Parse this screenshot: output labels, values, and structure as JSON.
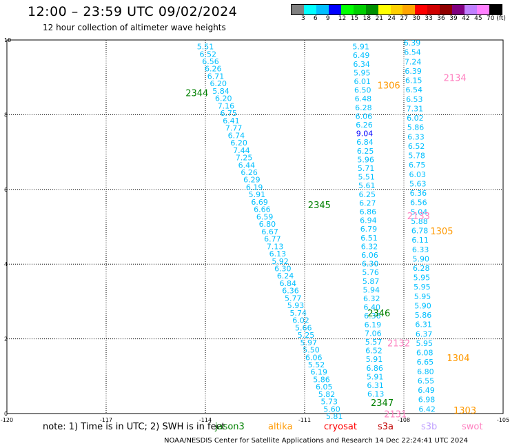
{
  "header": {
    "title": "12:00 – 23:59 UTC 09/02/2024",
    "subtitle": "12 hour collection of altimeter wave heights"
  },
  "colorbar": {
    "colors": [
      "#808080",
      "#00ffff",
      "#00bfff",
      "#0000ff",
      "#00ff00",
      "#00d000",
      "#009000",
      "#ffff00",
      "#ffd000",
      "#ffa500",
      "#ff0000",
      "#d00000",
      "#900000",
      "#800080",
      "#c080ff",
      "#ff80ff",
      "#000000"
    ],
    "labels": [
      "3",
      "6",
      "9",
      "12",
      "15",
      "18",
      "21",
      "24",
      "27",
      "30",
      "33",
      "36",
      "39",
      "42",
      "45",
      "70 (ft)"
    ]
  },
  "axes": {
    "y_ticks": [
      "10",
      "8",
      "6",
      "4",
      "2",
      "0"
    ],
    "x_ticks": [
      "-120",
      "-117",
      "-114",
      "-111",
      "-108",
      "-105"
    ]
  },
  "passes": [
    {
      "label": "2344",
      "color": "#008000",
      "lon": -114.6,
      "lat": 8.5
    },
    {
      "label": "2345",
      "color": "#008000",
      "lon": -110.9,
      "lat": 5.5
    },
    {
      "label": "2346",
      "color": "#008000",
      "lon": -109.1,
      "lat": 2.6
    },
    {
      "label": "2347",
      "color": "#008000",
      "lon": -109.0,
      "lat": 0.2
    },
    {
      "label": "1306",
      "color": "#ff9900",
      "lon": -108.8,
      "lat": 8.7
    },
    {
      "label": "2134",
      "color": "#ff80c0",
      "lon": -106.8,
      "lat": 8.9
    },
    {
      "label": "2133",
      "color": "#ff80c0",
      "lon": -107.9,
      "lat": 5.2
    },
    {
      "label": "1305",
      "color": "#ff9900",
      "lon": -107.2,
      "lat": 4.8
    },
    {
      "label": "2132",
      "color": "#ff80c0",
      "lon": -108.5,
      "lat": 1.8
    },
    {
      "label": "1304",
      "color": "#ff9900",
      "lon": -106.7,
      "lat": 1.4
    },
    {
      "label": "2131",
      "color": "#ff80c0",
      "lon": -108.6,
      "lat": -0.1
    },
    {
      "label": "1303",
      "color": "#ff9900",
      "lon": -106.5,
      "lat": 0.0
    }
  ],
  "tracks": [
    {
      "color": "#00bfff",
      "lon_start": -114.0,
      "lat_start": 9.75,
      "lon_end": -110.1,
      "lat_end": -0.15,
      "values": [
        "5.51",
        "6.52",
        "6.56",
        "6.26",
        "6.71",
        "6.20",
        "5.84",
        "6.20",
        "7.16",
        "6.75",
        "6.41",
        "7.77",
        "6.74",
        "6.20",
        "7.44",
        "7.25",
        "6.44",
        "6.26",
        "6.29",
        "6.19",
        "5.91",
        "6.69",
        "6.66",
        "6.59",
        "6.80",
        "6.67",
        "6.77",
        "7.13",
        "6.13",
        "5.92",
        "6.30",
        "6.24",
        "6.84",
        "6.36",
        "5.77",
        "5.93",
        "5.74",
        "6.02",
        "5.66",
        "5.25",
        "5.97",
        "5.50",
        "6.06",
        "5.52",
        "6.19",
        "5.86",
        "6.05",
        "5.82",
        "5.73",
        "5.60",
        "5.81"
      ]
    },
    {
      "color": "#00bfff",
      "lon_start": -109.3,
      "lat_start": 9.75,
      "lon_end": -108.85,
      "lat_end": 0.45,
      "values": [
        "5.91",
        "6.49",
        "6.34",
        "5.95",
        "6.01",
        "6.50",
        "6.48",
        "6.28",
        "6.06",
        "6.26",
        "9.04",
        "6.84",
        "6.25",
        "5.96",
        "5.71",
        "5.51",
        "5.61",
        "6.25",
        "6.27",
        "6.86",
        "6.94",
        "6.79",
        "6.51",
        "6.32",
        "6.06",
        "6.30",
        "5.76",
        "5.87",
        "5.94",
        "6.32",
        "6.40",
        "6.36",
        "6.19",
        "7.06",
        "5.57",
        "6.52",
        "5.91",
        "6.86",
        "5.91",
        "6.31",
        "6.13"
      ]
    },
    {
      "color": "#00bfff",
      "lon_start": -107.75,
      "lat_start": 9.85,
      "lon_end": -107.3,
      "lat_end": 0.05,
      "values": [
        "6.39",
        "6.54",
        "7.24",
        "6.39",
        "6.15",
        "6.54",
        "6.53",
        "7.31",
        "6.02",
        "5.86",
        "6.33",
        "6.52",
        "5.78",
        "6.75",
        "6.03",
        "5.63",
        "6.36",
        "6.56",
        "5.04",
        "5.88",
        "6.78",
        "6.11",
        "6.33",
        "5.90",
        "6.28",
        "5.95",
        "5.95",
        "5.95",
        "5.90",
        "5.86",
        "6.31",
        "6.37",
        "5.95",
        "6.08",
        "6.65",
        "6.80",
        "6.55",
        "6.49",
        "6.98",
        "6.42"
      ]
    }
  ],
  "note": {
    "text": "note:  1) Time is in UTC;  2) SWH is in feet"
  },
  "satellites": [
    {
      "name": "jason3",
      "color": "#008000"
    },
    {
      "name": "altika",
      "color": "#ff9900"
    },
    {
      "name": "cryosat",
      "color": "#ff0000"
    },
    {
      "name": "s3a",
      "color": "#c00000"
    },
    {
      "name": "s3b",
      "color": "#c0a0ff"
    },
    {
      "name": "swot",
      "color": "#ff80c0"
    }
  ],
  "footer": {
    "credit": "NOAA/NESDIS Center for Satellite Applications and Research    14 Dec 22:24:41 UTC 2024"
  }
}
